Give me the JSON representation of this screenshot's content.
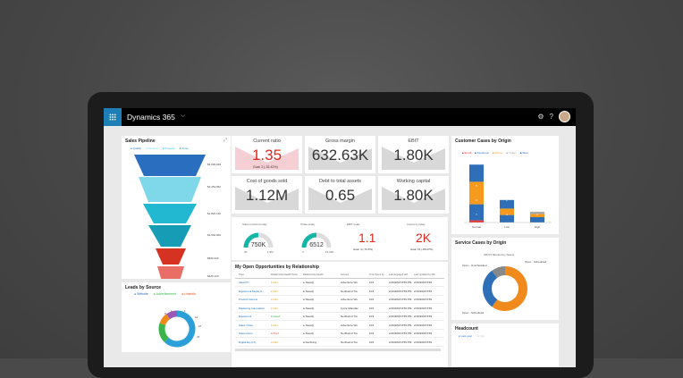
{
  "app": {
    "title": "Dynamics 365"
  },
  "funnel": {
    "title": "Sales Pipeline",
    "legend": [
      "Qualify",
      "Develop",
      "Propose",
      "Close"
    ],
    "values": [
      "$3,003,949",
      "$2,451,962",
      "$1,822,140",
      "$1,002,000",
      "$600,340",
      "$420,120"
    ],
    "colors": [
      "#2a6fbf",
      "#7fd8ea",
      "#22b8d2",
      "#169db5",
      "#d53222",
      "#e86e66"
    ]
  },
  "leads": {
    "title": "Leads by Source",
    "legend": [
      "Website",
      "Advertisement",
      "LinkedIn"
    ],
    "labels": [
      "1",
      "0",
      "1",
      "12",
      "27",
      "47"
    ]
  },
  "kpis": [
    {
      "label": "Current ratio",
      "value": "1.35",
      "goal": "Goal: 2 (-32.42%)",
      "red": true
    },
    {
      "label": "Gross margin",
      "value": "632.63K",
      "goal": "",
      "red": false
    },
    {
      "label": "EBIT",
      "value": "1.80K",
      "goal": "",
      "red": false
    },
    {
      "label": "Cost of goods sold",
      "value": "1.12M",
      "goal": "",
      "red": false
    },
    {
      "label": "Debt to total assets",
      "value": "0.65",
      "goal": "",
      "red": false
    },
    {
      "label": "Working capital",
      "value": "1.80K",
      "goal": "",
      "red": false
    }
  ],
  "gauges": [
    {
      "label": "Sales Invoiced today",
      "value": "750K",
      "min": "0K",
      "max": "1.5M",
      "fraction": 0.5
    },
    {
      "label": "Chats today",
      "value": "6512",
      "min": "0",
      "max": "13.02K",
      "fraction": 0.5
    }
  ],
  "ebit": {
    "label": "EBIT today",
    "value": "1.1",
    "goal": "Goal: 4 (-72.5%)"
  },
  "inv": {
    "label": "Inventory today",
    "value": "2K",
    "goal": "Goal: 15 (-86.67%)"
  },
  "opps": {
    "title": "My Open Opportunities by Relationship",
    "headers": [
      "Topic",
      "Relationship Health Score (EN)",
      "Relationship Health",
      "Account",
      "Time Spent by...",
      "Last Engaged with",
      "Last Updated by MS"
    ],
    "rows": [
      [
        "Ideal PC",
        "Fair",
        "Steady",
        "Adventure Wo",
        "103",
        "2/19/2018 8:59 PM",
        "2/19/2018 8:59"
      ],
      [
        "Equipment Model 4...",
        "Fair",
        "Steady",
        "Northwind Tra",
        "103",
        "2/19/2018 8:59 PM",
        "2/19/2018 8:59"
      ],
      [
        "Product Interest",
        "Fair",
        "Steady",
        "Adventure Wo",
        "103",
        "2/19/2018 8:59 PM",
        "2/19/2018 8:59"
      ],
      [
        "Marketing Automation",
        "Fair",
        "Steady",
        "Cycle Manufac",
        "103",
        "2/19/2018 8:59 PM",
        "2/19/2018 8:59"
      ],
      [
        "Equipment",
        "Good",
        "Steady",
        "Northwind Tra",
        "103",
        "2/19/2018 8:59 PM",
        "2/19/2018 8:59"
      ],
      [
        "Sales Order",
        "Fair",
        "Steady",
        "Adventure Wo",
        "103",
        "2/19/2018 8:59 PM",
        "2/19/2018 8:59"
      ],
      [
        "Sales Items",
        "Poor",
        "Steady",
        "Northwind Tra",
        "103",
        "2/19/2018 8:59 PM",
        "2/19/2018 8:59"
      ],
      [
        "Digital Eq.(LX)",
        "Fair",
        "Declining",
        "Northwind Tra",
        "103",
        "2/19/2018 8:59 PM",
        "2/19/2018 8:59"
      ]
    ]
  },
  "cases": {
    "title": "Customer Cases by Origin",
    "legend": [
      "Email",
      "Facebook",
      "Phone",
      "Twitter",
      "Web"
    ],
    "categories": [
      "Normal",
      "Low",
      "High"
    ],
    "series": [
      {
        "name": "Email",
        "color": "#e33",
        "values": [
          0.2,
          0,
          0
        ]
      },
      {
        "name": "Facebook",
        "color": "#2f6fb8",
        "values": [
          1.5,
          0.7,
          0.5
        ]
      },
      {
        "name": "Phone",
        "color": "#f59a1c",
        "values": [
          2.1,
          0.6,
          0.3
        ]
      },
      {
        "name": "Twitter",
        "color": "#aaa",
        "values": [
          0,
          0,
          0.2
        ]
      },
      {
        "name": "Web",
        "color": "#2f6fb8",
        "values": [
          1.6,
          0.8,
          0
        ]
      }
    ],
    "bar_labels": [
      [
        "7",
        "6",
        "5"
      ],
      [
        "3",
        "2"
      ],
      [
        "2",
        "1"
      ]
    ]
  },
  "service": {
    "title": "Service Cases by Origin",
    "subtitle": "SR/CS Blocked by Status",
    "labels": [
      "Open - Unscheduled",
      "Open - Scheduled",
      "Open - Scheduled"
    ],
    "values": [
      60,
      30,
      10
    ],
    "colors": [
      "#f08a1c",
      "#2f6fb8",
      "#888"
    ]
  },
  "headcount": {
    "title": "Headcount",
    "legend": [
      "Last year",
      "Yes"
    ]
  }
}
